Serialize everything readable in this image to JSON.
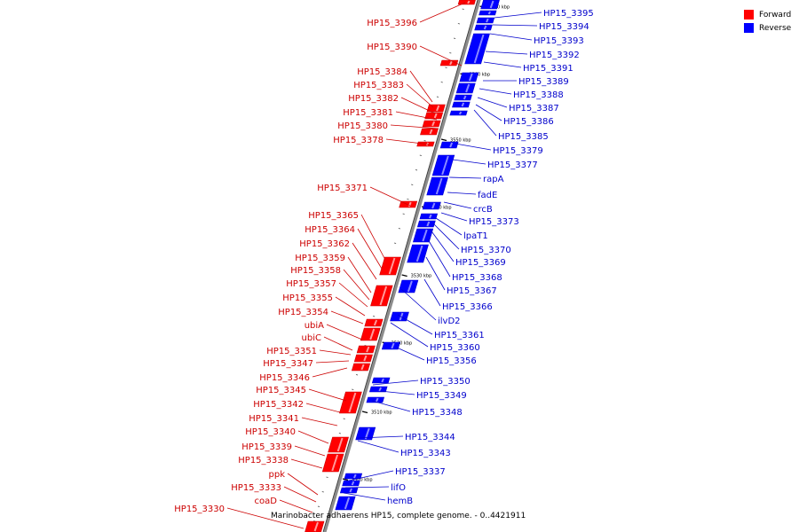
{
  "caption": "Marinobacter adhaerens HP15, complete genome. - 0..4421911",
  "legend": [
    {
      "label": "Forward",
      "color": "#ff0000"
    },
    {
      "label": "Reverse",
      "color": "#0000ff"
    }
  ],
  "colors": {
    "forward": "#cc0000",
    "forward_fill": "#ff0000",
    "reverse": "#0000cc",
    "reverse_fill": "#0000ff",
    "backbone": "#8c8c8c"
  },
  "ticks": [
    "3570 kbp",
    "3560 kbp",
    "3550 kbp",
    "3540 kbp",
    "3530 kbp",
    "3520 kbp",
    "3510 kbp",
    "3500 kbp"
  ],
  "forward_labels": [
    "HP15_3396",
    "HP15_3390",
    "HP15_3384",
    "HP15_3383",
    "HP15_3382",
    "HP15_3381",
    "HP15_3380",
    "HP15_3378",
    "HP15_3371",
    "HP15_3365",
    "HP15_3364",
    "HP15_3362",
    "HP15_3359",
    "HP15_3358",
    "HP15_3357",
    "HP15_3355",
    "HP15_3354",
    "ubiA",
    "ubiC",
    "HP15_3351",
    "HP15_3347",
    "HP15_3346",
    "HP15_3345",
    "HP15_3342",
    "HP15_3341",
    "HP15_3340",
    "HP15_3339",
    "HP15_3338",
    "ppk",
    "HP15_3333",
    "coaD",
    "HP15_3330"
  ],
  "reverse_labels": [
    "HP15_3395",
    "HP15_3394",
    "HP15_3393",
    "HP15_3392",
    "HP15_3391",
    "HP15_3389",
    "HP15_3388",
    "HP15_3387",
    "HP15_3386",
    "HP15_3385",
    "HP15_3379",
    "HP15_3377",
    "rapA",
    "fadE",
    "crcB",
    "HP15_3373",
    "lpaT1",
    "HP15_3370",
    "HP15_3369",
    "HP15_3368",
    "HP15_3367",
    "HP15_3366",
    "ilvD2",
    "HP15_3361",
    "HP15_3360",
    "HP15_3356",
    "HP15_3350",
    "HP15_3349",
    "HP15_3348",
    "HP15_3344",
    "HP15_3343",
    "HP15_3337",
    "lifO",
    "hemB"
  ]
}
